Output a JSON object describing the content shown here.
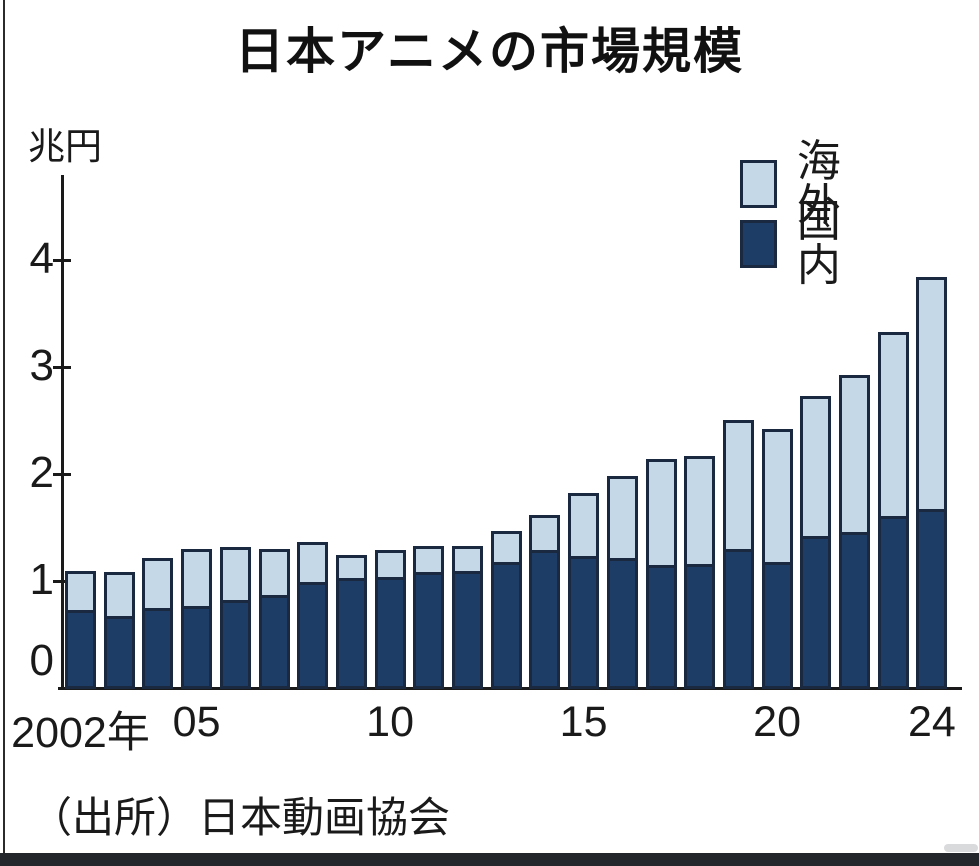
{
  "chart_data": {
    "type": "bar",
    "stacked": true,
    "title": "日本アニメの市場規模",
    "source": "（出所）日本動画協会",
    "y_axis": {
      "unit": "兆円",
      "ticks": [
        0,
        1,
        2,
        3,
        4
      ],
      "range": [
        0,
        4.8
      ],
      "grid": false
    },
    "x_axis": {
      "tick_labels": [
        {
          "label": "2002年",
          "index": 0
        },
        {
          "label": "05",
          "index": 3
        },
        {
          "label": "10",
          "index": 8
        },
        {
          "label": "15",
          "index": 13
        },
        {
          "label": "20",
          "index": 18
        },
        {
          "label": "24",
          "index": 22
        }
      ]
    },
    "legend": {
      "position": "top-right",
      "entries": [
        {
          "label": "海外",
          "color": "#c5d8e7"
        },
        {
          "label": "国内",
          "color": "#1d3c66"
        }
      ]
    },
    "categories": [
      "2002",
      "2003",
      "2004",
      "2005",
      "2006",
      "2007",
      "2008",
      "2009",
      "2010",
      "2011",
      "2012",
      "2013",
      "2014",
      "2015",
      "2016",
      "2017",
      "2018",
      "2019",
      "2020",
      "2021",
      "2022",
      "2023",
      "2024"
    ],
    "series": [
      {
        "name": "国内",
        "color": "#1d3c66",
        "values": [
          0.74,
          0.68,
          0.76,
          0.78,
          0.83,
          0.88,
          1.0,
          1.04,
          1.05,
          1.09,
          1.1,
          1.19,
          1.3,
          1.24,
          1.22,
          1.16,
          1.17,
          1.31,
          1.19,
          1.43,
          1.47,
          1.62,
          1.68
        ]
      },
      {
        "name": "海外",
        "color": "#c5d8e7",
        "values": [
          0.36,
          0.41,
          0.46,
          0.53,
          0.5,
          0.43,
          0.37,
          0.21,
          0.25,
          0.25,
          0.24,
          0.29,
          0.33,
          0.59,
          0.77,
          0.99,
          1.01,
          1.2,
          1.24,
          1.31,
          1.46,
          1.72,
          2.17
        ]
      }
    ],
    "totals": [
      1.1,
      1.09,
      1.22,
      1.31,
      1.33,
      1.31,
      1.37,
      1.25,
      1.3,
      1.34,
      1.34,
      1.48,
      1.63,
      1.83,
      1.99,
      2.15,
      2.18,
      2.51,
      2.43,
      2.74,
      2.93,
      3.34,
      3.85
    ]
  },
  "colors": {
    "bar_stroke": "#1b2940",
    "axis": "#1a1a1a",
    "bottom_bar": "#23272b",
    "background": "#ffffff"
  }
}
